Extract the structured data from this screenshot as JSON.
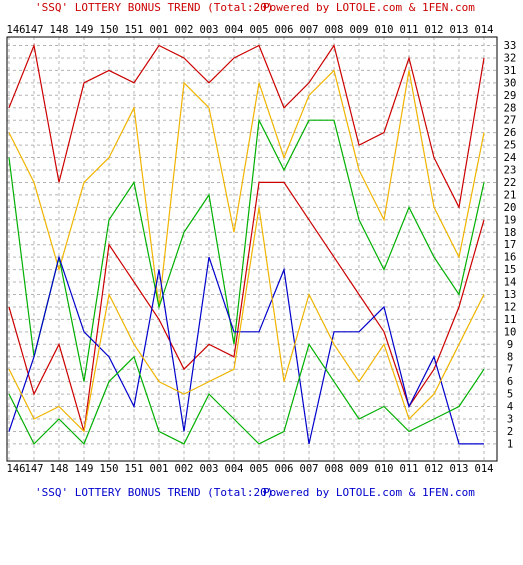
{
  "header": {
    "title": "'SSQ' LOTTERY BONUS TREND (Total:20)",
    "powered": "Powered by LOTOLE.com & 1FEN.com"
  },
  "footer": {
    "title": "'SSQ' LOTTERY BONUS TREND (Total:20)",
    "powered": "Powered by LOTOLE.com & 1FEN.com"
  },
  "colors": {
    "title_red": "#cc0000",
    "footer_blue": "#0000cc",
    "grid": "#b4b4b4",
    "border": "#000000"
  },
  "chart_data": {
    "type": "line",
    "title": "'SSQ' LOTTERY BONUS TREND (Total:20)",
    "categories": [
      "146",
      "147",
      "148",
      "149",
      "150",
      "151",
      "001",
      "002",
      "003",
      "004",
      "005",
      "006",
      "007",
      "008",
      "009",
      "010",
      "011",
      "012",
      "013",
      "014"
    ],
    "y_ticks": [
      1,
      2,
      3,
      4,
      5,
      6,
      7,
      8,
      9,
      10,
      11,
      12,
      13,
      14,
      15,
      16,
      17,
      18,
      19,
      20,
      21,
      22,
      23,
      24,
      25,
      26,
      27,
      28,
      29,
      30,
      31,
      32,
      33
    ],
    "ylim": [
      0,
      34
    ],
    "grid": true,
    "series": [
      {
        "color": "#cc0000",
        "values": [
          28,
          33,
          22,
          30,
          31,
          30,
          33,
          32,
          30,
          32,
          33,
          28,
          30,
          33,
          25,
          26,
          32,
          24,
          20,
          32
        ]
      },
      {
        "color": "#f0b400",
        "values": [
          26,
          22,
          15,
          22,
          24,
          28,
          12,
          30,
          28,
          18,
          30,
          24,
          29,
          31,
          23,
          19,
          31,
          20,
          16,
          26
        ]
      },
      {
        "color": "#00b000",
        "values": [
          24,
          8,
          16,
          6,
          19,
          22,
          12,
          18,
          21,
          9,
          27,
          23,
          27,
          27,
          19,
          15,
          20,
          16,
          13,
          22
        ]
      },
      {
        "color": "#cc0000",
        "values": [
          12,
          5,
          9,
          2,
          17,
          14,
          11,
          7,
          9,
          8,
          22,
          22,
          19,
          16,
          13,
          10,
          4,
          7,
          12,
          19
        ]
      },
      {
        "color": "#0000cc",
        "values": [
          2,
          8,
          16,
          10,
          8,
          4,
          15,
          2,
          16,
          10,
          10,
          15,
          1,
          10,
          10,
          12,
          4,
          8,
          1,
          1
        ]
      },
      {
        "color": "#f0b400",
        "values": [
          7,
          3,
          4,
          2,
          13,
          9,
          6,
          5,
          6,
          7,
          20,
          6,
          13,
          9,
          6,
          9,
          3,
          5,
          9,
          13
        ]
      },
      {
        "color": "#00b000",
        "values": [
          5,
          1,
          3,
          1,
          6,
          8,
          2,
          1,
          5,
          3,
          1,
          2,
          9,
          6,
          3,
          4,
          2,
          3,
          4,
          7
        ]
      }
    ]
  }
}
